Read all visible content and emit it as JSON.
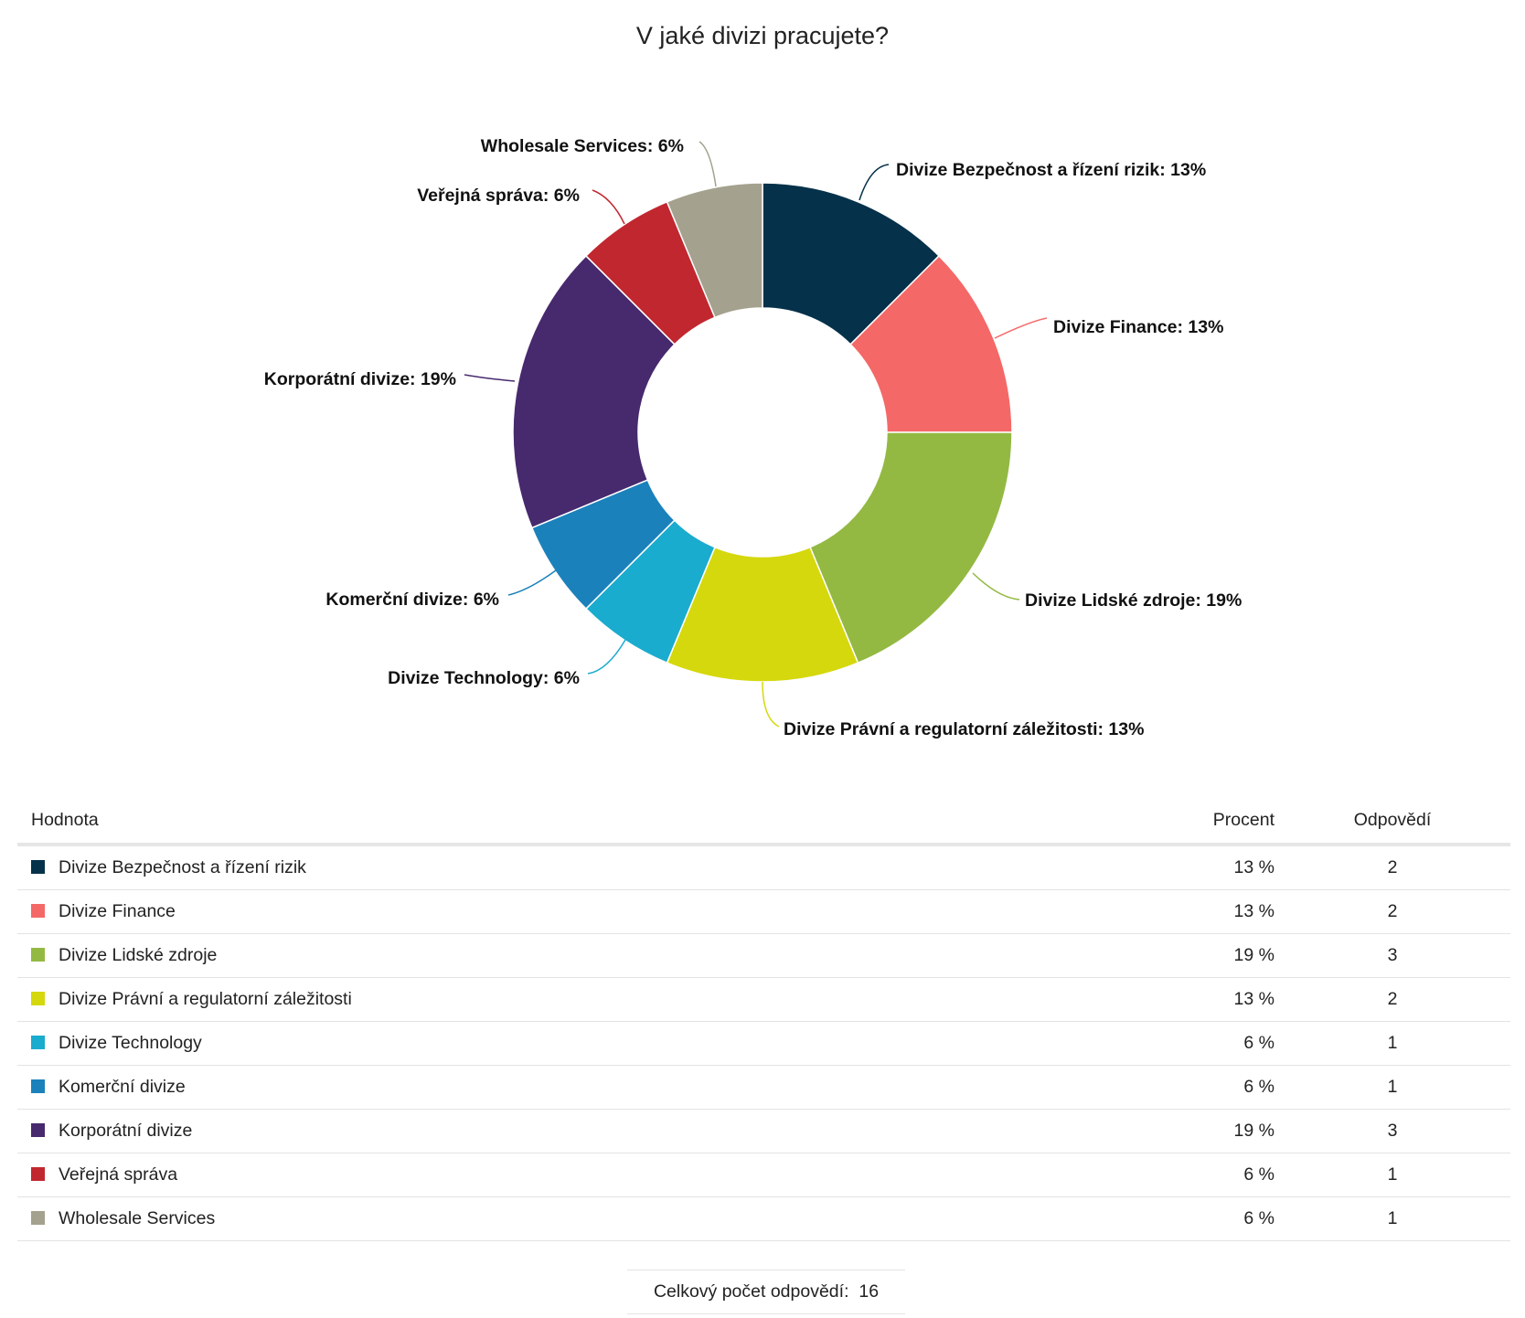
{
  "chart_data": {
    "type": "pie",
    "variant": "donut",
    "title": "V jaké divizi pracujete?",
    "categories": [
      "Divize Bezpečnost a řízení rizik",
      "Divize Finance",
      "Divize Lidské zdroje",
      "Divize Právní a regulatorní záležitosti",
      "Divize Technology",
      "Komerční divize",
      "Korporátní divize",
      "Veřejná správa",
      "Wholesale Services"
    ],
    "values": [
      2,
      2,
      3,
      2,
      1,
      1,
      3,
      1,
      1
    ],
    "labels": [
      "Divize Bezpečnost a řízení rizik: 13%",
      "Divize Finance: 13%",
      "Divize Lidské zdroje: 19%",
      "Divize Právní a regulatorní záležitosti: 13%",
      "Divize Technology: 6%",
      "Komerční divize: 6%",
      "Korporátní divize: 19%",
      "Veřejná správa: 6%",
      "Wholesale Services: 6%"
    ],
    "colors": [
      "#05314a",
      "#f46867",
      "#93b943",
      "#d5d80c",
      "#1aacce",
      "#1b81bb",
      "#47296e",
      "#c1272f",
      "#a4a28e"
    ]
  },
  "table": {
    "headers": {
      "value": "Hodnota",
      "percent": "Procent",
      "count": "Odpovědí"
    },
    "rows": [
      {
        "label": "Divize Bezpečnost a řízení rizik",
        "percent": "13 %",
        "count": "2",
        "color": "#05314a"
      },
      {
        "label": "Divize Finance",
        "percent": "13 %",
        "count": "2",
        "color": "#f46867"
      },
      {
        "label": "Divize Lidské zdroje",
        "percent": "19 %",
        "count": "3",
        "color": "#93b943"
      },
      {
        "label": "Divize Právní a regulatorní záležitosti",
        "percent": "13 %",
        "count": "2",
        "color": "#d5d80c"
      },
      {
        "label": "Divize Technology",
        "percent": "6 %",
        "count": "1",
        "color": "#1aacce"
      },
      {
        "label": "Komerční divize",
        "percent": "6 %",
        "count": "1",
        "color": "#1b81bb"
      },
      {
        "label": "Korporátní divize",
        "percent": "19 %",
        "count": "3",
        "color": "#47296e"
      },
      {
        "label": "Veřejná správa",
        "percent": "6 %",
        "count": "1",
        "color": "#c1272f"
      },
      {
        "label": "Wholesale Services",
        "percent": "6 %",
        "count": "1",
        "color": "#a4a28e"
      }
    ]
  },
  "total": {
    "label": "Celkový počet odpovědí:",
    "value": "16"
  }
}
